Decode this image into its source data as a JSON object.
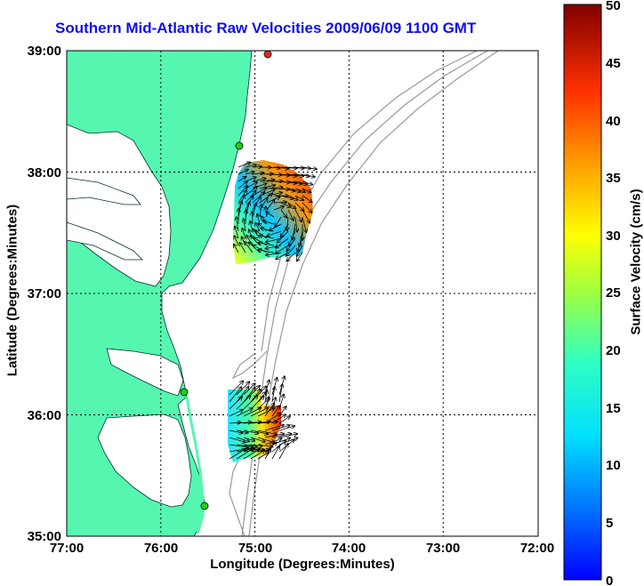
{
  "title": "Southern Mid-Atlantic Raw Velocities 2009/06/09 1100 GMT",
  "x_axis": {
    "label": "Longitude (Degrees:Minutes)",
    "ticks": [
      "77:00",
      "76:00",
      "75:00",
      "74:00",
      "73:00",
      "72:00"
    ],
    "range_deg_west": [
      77,
      72
    ]
  },
  "y_axis": {
    "label": "Latitude (Degrees:Minutes)",
    "ticks": [
      "39:00",
      "38:00",
      "37:00",
      "36:00",
      "35:00"
    ],
    "range_deg_north": [
      35,
      39
    ]
  },
  "colorbar": {
    "label": "Surface Velocity (cm/s)",
    "ticks": [
      "50",
      "45",
      "40",
      "35",
      "30",
      "25",
      "20",
      "15",
      "10",
      "5",
      "0"
    ],
    "range": [
      0,
      50
    ],
    "colormap": "jet"
  },
  "colors": {
    "land": "#55f7b0",
    "water": "#ffffff",
    "isobath": "#9a9a9a",
    "title": "#1010ee",
    "site_marker": "#22cc22",
    "site_marker_offline": "#ee2222"
  },
  "grid": "dotted at every degree",
  "vectors": "black arrows showing raw surface current direction"
}
